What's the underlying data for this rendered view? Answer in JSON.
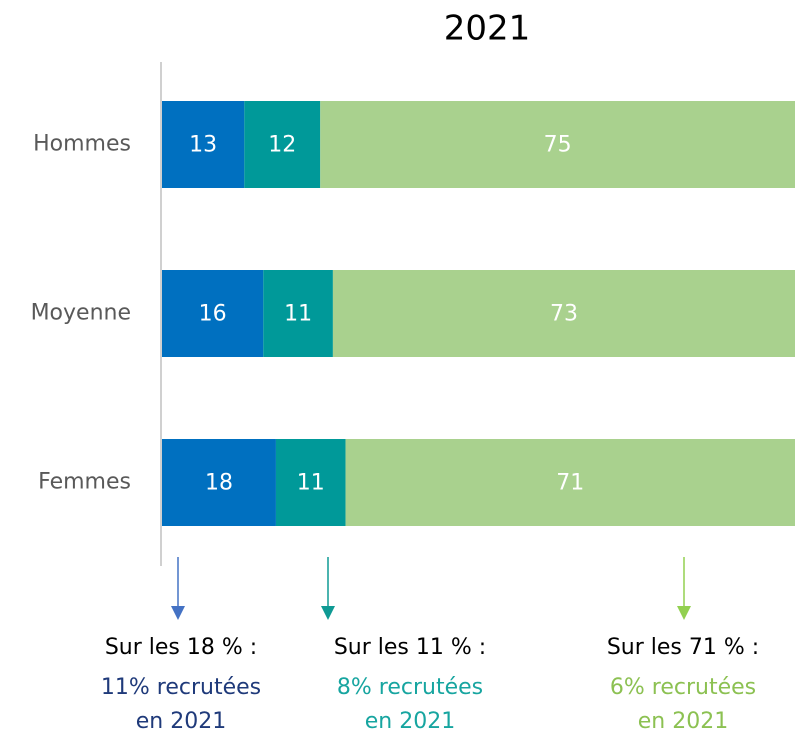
{
  "chart_data": {
    "type": "stacked_barh",
    "title": "2021",
    "categories": [
      "Hommes",
      "Moyenne",
      "Femmes"
    ],
    "series": [
      {
        "color": "#0070c0",
        "values": [
          13,
          16,
          18
        ]
      },
      {
        "color": "#009999",
        "values": [
          12,
          11,
          11
        ]
      },
      {
        "color": "#a9d18e",
        "values": [
          75,
          73,
          71
        ]
      }
    ],
    "xlim": [
      0,
      100
    ],
    "annotations": [
      {
        "lines": [
          "Sur les 18 % :",
          "11% recrutées",
          "en 2021"
        ],
        "color": "#1f3a7a",
        "arrow_color": "#4472c4"
      },
      {
        "lines": [
          "Sur les 11 % :",
          "8% recrutées",
          "en 2021"
        ],
        "color": "#17a5a0",
        "arrow_color": "#0f9a94"
      },
      {
        "lines": [
          "Sur les 71 % :",
          "6% recrutées",
          "en 2021"
        ],
        "color": "#8cc152",
        "arrow_color": "#92d050"
      }
    ]
  }
}
